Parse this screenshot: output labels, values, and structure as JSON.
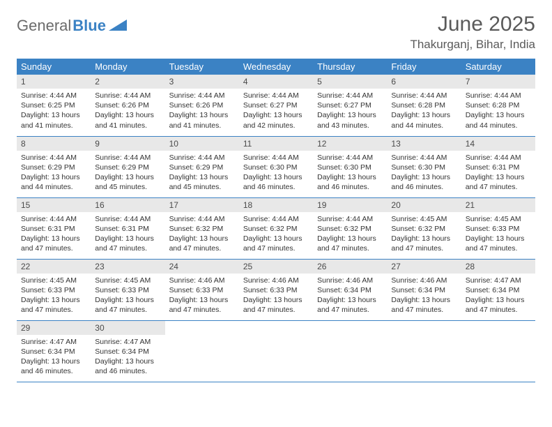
{
  "logo": {
    "text1": "General",
    "text2": "Blue"
  },
  "title": "June 2025",
  "location": "Thakurganj, Bihar, India",
  "colors": {
    "header_bg": "#3b82c4",
    "header_text": "#ffffff",
    "daynum_bg": "#e8e8e8",
    "border": "#3b82c4",
    "logo_gray": "#6b6b6b",
    "logo_blue": "#3b82c4",
    "title_color": "#5a5a5a"
  },
  "columns": [
    "Sunday",
    "Monday",
    "Tuesday",
    "Wednesday",
    "Thursday",
    "Friday",
    "Saturday"
  ],
  "weeks": [
    [
      {
        "n": "1",
        "sr": "4:44 AM",
        "ss": "6:25 PM",
        "dl": "13 hours and 41 minutes."
      },
      {
        "n": "2",
        "sr": "4:44 AM",
        "ss": "6:26 PM",
        "dl": "13 hours and 41 minutes."
      },
      {
        "n": "3",
        "sr": "4:44 AM",
        "ss": "6:26 PM",
        "dl": "13 hours and 41 minutes."
      },
      {
        "n": "4",
        "sr": "4:44 AM",
        "ss": "6:27 PM",
        "dl": "13 hours and 42 minutes."
      },
      {
        "n": "5",
        "sr": "4:44 AM",
        "ss": "6:27 PM",
        "dl": "13 hours and 43 minutes."
      },
      {
        "n": "6",
        "sr": "4:44 AM",
        "ss": "6:28 PM",
        "dl": "13 hours and 44 minutes."
      },
      {
        "n": "7",
        "sr": "4:44 AM",
        "ss": "6:28 PM",
        "dl": "13 hours and 44 minutes."
      }
    ],
    [
      {
        "n": "8",
        "sr": "4:44 AM",
        "ss": "6:29 PM",
        "dl": "13 hours and 44 minutes."
      },
      {
        "n": "9",
        "sr": "4:44 AM",
        "ss": "6:29 PM",
        "dl": "13 hours and 45 minutes."
      },
      {
        "n": "10",
        "sr": "4:44 AM",
        "ss": "6:29 PM",
        "dl": "13 hours and 45 minutes."
      },
      {
        "n": "11",
        "sr": "4:44 AM",
        "ss": "6:30 PM",
        "dl": "13 hours and 46 minutes."
      },
      {
        "n": "12",
        "sr": "4:44 AM",
        "ss": "6:30 PM",
        "dl": "13 hours and 46 minutes."
      },
      {
        "n": "13",
        "sr": "4:44 AM",
        "ss": "6:30 PM",
        "dl": "13 hours and 46 minutes."
      },
      {
        "n": "14",
        "sr": "4:44 AM",
        "ss": "6:31 PM",
        "dl": "13 hours and 47 minutes."
      }
    ],
    [
      {
        "n": "15",
        "sr": "4:44 AM",
        "ss": "6:31 PM",
        "dl": "13 hours and 47 minutes."
      },
      {
        "n": "16",
        "sr": "4:44 AM",
        "ss": "6:31 PM",
        "dl": "13 hours and 47 minutes."
      },
      {
        "n": "17",
        "sr": "4:44 AM",
        "ss": "6:32 PM",
        "dl": "13 hours and 47 minutes."
      },
      {
        "n": "18",
        "sr": "4:44 AM",
        "ss": "6:32 PM",
        "dl": "13 hours and 47 minutes."
      },
      {
        "n": "19",
        "sr": "4:44 AM",
        "ss": "6:32 PM",
        "dl": "13 hours and 47 minutes."
      },
      {
        "n": "20",
        "sr": "4:45 AM",
        "ss": "6:32 PM",
        "dl": "13 hours and 47 minutes."
      },
      {
        "n": "21",
        "sr": "4:45 AM",
        "ss": "6:33 PM",
        "dl": "13 hours and 47 minutes."
      }
    ],
    [
      {
        "n": "22",
        "sr": "4:45 AM",
        "ss": "6:33 PM",
        "dl": "13 hours and 47 minutes."
      },
      {
        "n": "23",
        "sr": "4:45 AM",
        "ss": "6:33 PM",
        "dl": "13 hours and 47 minutes."
      },
      {
        "n": "24",
        "sr": "4:46 AM",
        "ss": "6:33 PM",
        "dl": "13 hours and 47 minutes."
      },
      {
        "n": "25",
        "sr": "4:46 AM",
        "ss": "6:33 PM",
        "dl": "13 hours and 47 minutes."
      },
      {
        "n": "26",
        "sr": "4:46 AM",
        "ss": "6:34 PM",
        "dl": "13 hours and 47 minutes."
      },
      {
        "n": "27",
        "sr": "4:46 AM",
        "ss": "6:34 PM",
        "dl": "13 hours and 47 minutes."
      },
      {
        "n": "28",
        "sr": "4:47 AM",
        "ss": "6:34 PM",
        "dl": "13 hours and 47 minutes."
      }
    ],
    [
      {
        "n": "29",
        "sr": "4:47 AM",
        "ss": "6:34 PM",
        "dl": "13 hours and 46 minutes."
      },
      {
        "n": "30",
        "sr": "4:47 AM",
        "ss": "6:34 PM",
        "dl": "13 hours and 46 minutes."
      },
      null,
      null,
      null,
      null,
      null
    ]
  ],
  "labels": {
    "sunrise": "Sunrise:",
    "sunset": "Sunset:",
    "daylight": "Daylight:"
  }
}
